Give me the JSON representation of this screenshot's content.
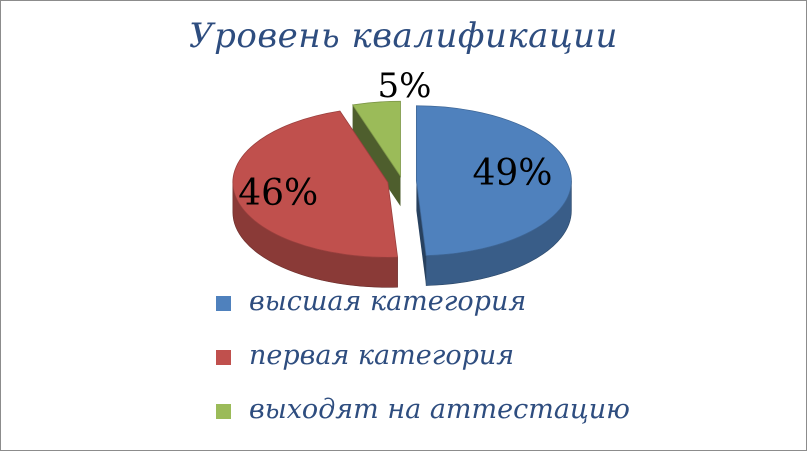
{
  "chart_data": {
    "type": "pie",
    "title": "Уровень квалификации",
    "categories": [
      "высшая категория",
      "первая категория",
      "выходят на аттестацию"
    ],
    "values": [
      49,
      46,
      5
    ],
    "value_labels": [
      "49%",
      "46%",
      "5%"
    ],
    "colors": [
      "#4f81bd",
      "#c0504d",
      "#9bbb59"
    ],
    "style": "3d exploded pie",
    "legend_position": "bottom"
  }
}
